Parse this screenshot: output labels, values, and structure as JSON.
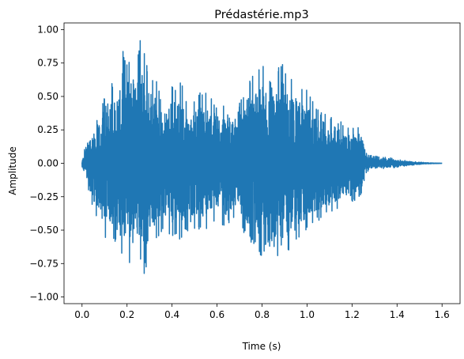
{
  "chart_data": {
    "type": "line",
    "title": "Prédastérie.mp3",
    "xlabel": "Time (s)",
    "ylabel": "Amplitude",
    "xlim": [
      -0.08,
      1.68
    ],
    "ylim": [
      -1.05,
      1.05
    ],
    "x_ticks": [
      0.0,
      0.2,
      0.4,
      0.6,
      0.8,
      1.0,
      1.2,
      1.4,
      1.6
    ],
    "x_tick_labels": [
      "0.0",
      "0.2",
      "0.4",
      "0.6",
      "0.8",
      "1.0",
      "1.2",
      "1.4",
      "1.6"
    ],
    "y_ticks": [
      1.0,
      0.75,
      0.5,
      0.25,
      0.0,
      -0.25,
      -0.5,
      -0.75,
      -1.0
    ],
    "y_tick_labels": [
      "1.00",
      "0.75",
      "0.50",
      "0.25",
      "0.00",
      "−0.25",
      "−0.50",
      "−0.75",
      "−1.00"
    ],
    "grid": false,
    "series": [
      {
        "color": "#1f77b4",
        "duration": 1.6,
        "peak_max": 0.96,
        "peak_min": -0.94,
        "envelope": {
          "t": [
            0.0,
            0.02,
            0.05,
            0.08,
            0.1,
            0.12,
            0.15,
            0.18,
            0.2,
            0.22,
            0.24,
            0.26,
            0.28,
            0.3,
            0.33,
            0.36,
            0.4,
            0.44,
            0.48,
            0.52,
            0.56,
            0.6,
            0.64,
            0.68,
            0.72,
            0.76,
            0.8,
            0.84,
            0.88,
            0.92,
            0.96,
            1.0,
            1.04,
            1.08,
            1.12,
            1.16,
            1.2,
            1.24,
            1.26,
            1.28,
            1.32,
            1.36,
            1.4,
            1.44,
            1.48,
            1.52,
            1.56,
            1.6
          ],
          "max": [
            0.02,
            0.18,
            0.3,
            0.4,
            0.5,
            0.65,
            0.6,
            0.85,
            0.75,
            0.9,
            0.78,
            0.95,
            0.8,
            0.7,
            0.62,
            0.45,
            0.58,
            0.62,
            0.4,
            0.55,
            0.52,
            0.45,
            0.48,
            0.35,
            0.55,
            0.7,
            0.75,
            0.6,
            0.8,
            0.65,
            0.6,
            0.55,
            0.42,
            0.38,
            0.35,
            0.3,
            0.28,
            0.3,
            0.1,
            0.06,
            0.05,
            0.045,
            0.03,
            0.02,
            0.012,
            0.006,
            0.003,
            0.001
          ],
          "min": [
            -0.03,
            -0.15,
            -0.35,
            -0.45,
            -0.6,
            -0.55,
            -0.62,
            -0.7,
            -0.72,
            -0.8,
            -0.78,
            -0.94,
            -0.82,
            -0.7,
            -0.6,
            -0.5,
            -0.55,
            -0.6,
            -0.48,
            -0.5,
            -0.5,
            -0.45,
            -0.48,
            -0.4,
            -0.52,
            -0.62,
            -0.7,
            -0.62,
            -0.8,
            -0.68,
            -0.6,
            -0.52,
            -0.45,
            -0.4,
            -0.38,
            -0.32,
            -0.3,
            -0.25,
            -0.08,
            -0.05,
            -0.045,
            -0.04,
            -0.03,
            -0.02,
            -0.012,
            -0.006,
            -0.003,
            -0.001
          ]
        }
      }
    ]
  }
}
